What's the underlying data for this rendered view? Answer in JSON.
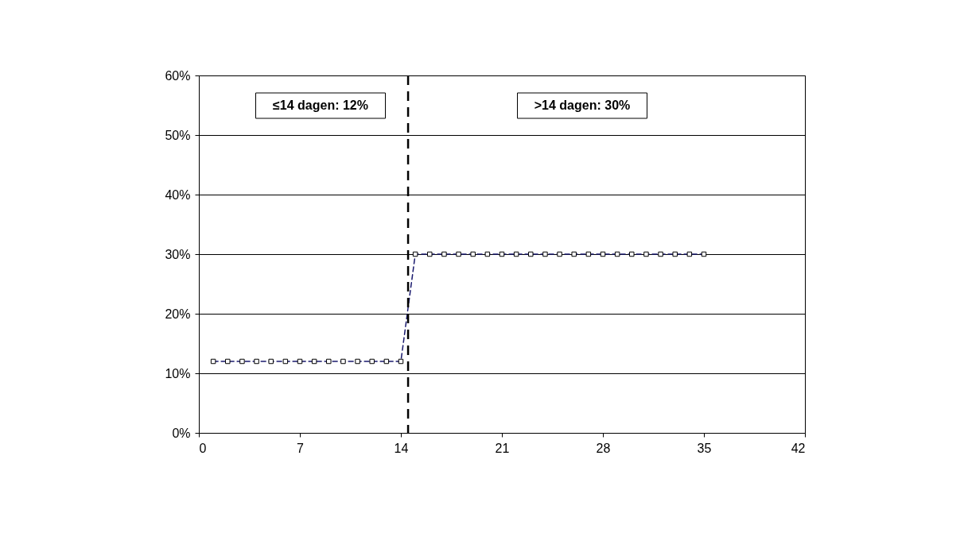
{
  "chart_data": {
    "type": "line",
    "x": [
      1,
      2,
      3,
      4,
      5,
      6,
      7,
      8,
      9,
      10,
      11,
      12,
      13,
      14,
      15,
      16,
      17,
      18,
      19,
      20,
      21,
      22,
      23,
      24,
      25,
      26,
      27,
      28,
      29,
      30,
      31,
      32,
      33,
      34,
      35
    ],
    "series": [
      {
        "color": "#1a1a6e",
        "values": [
          12,
          12,
          12,
          12,
          12,
          12,
          12,
          12,
          12,
          12,
          12,
          12,
          12,
          12,
          30,
          30,
          30,
          30,
          30,
          30,
          30,
          30,
          30,
          30,
          30,
          30,
          30,
          30,
          30,
          30,
          30,
          30,
          30,
          30,
          30
        ]
      }
    ],
    "xlim": [
      0,
      42
    ],
    "xticks": [
      0,
      7,
      14,
      21,
      28,
      35,
      42
    ],
    "ylim": [
      0,
      60
    ],
    "yticks": [
      {
        "value": 0,
        "label": "0%"
      },
      {
        "value": 10,
        "label": "10%"
      },
      {
        "value": 20,
        "label": "20%"
      },
      {
        "value": 30,
        "label": "30%"
      },
      {
        "value": 40,
        "label": "40%"
      },
      {
        "value": 50,
        "label": "50%"
      },
      {
        "value": 60,
        "label": "60%"
      }
    ],
    "grid": "y",
    "marker": "square",
    "line_style": "dashed",
    "ref_lines": [
      {
        "axis": "x",
        "value": 14.5,
        "color": "#000000",
        "line_style": "dashed"
      }
    ],
    "annotations": [
      "≤14 dagen: 12%",
      ">14 dagen: 30%"
    ]
  }
}
